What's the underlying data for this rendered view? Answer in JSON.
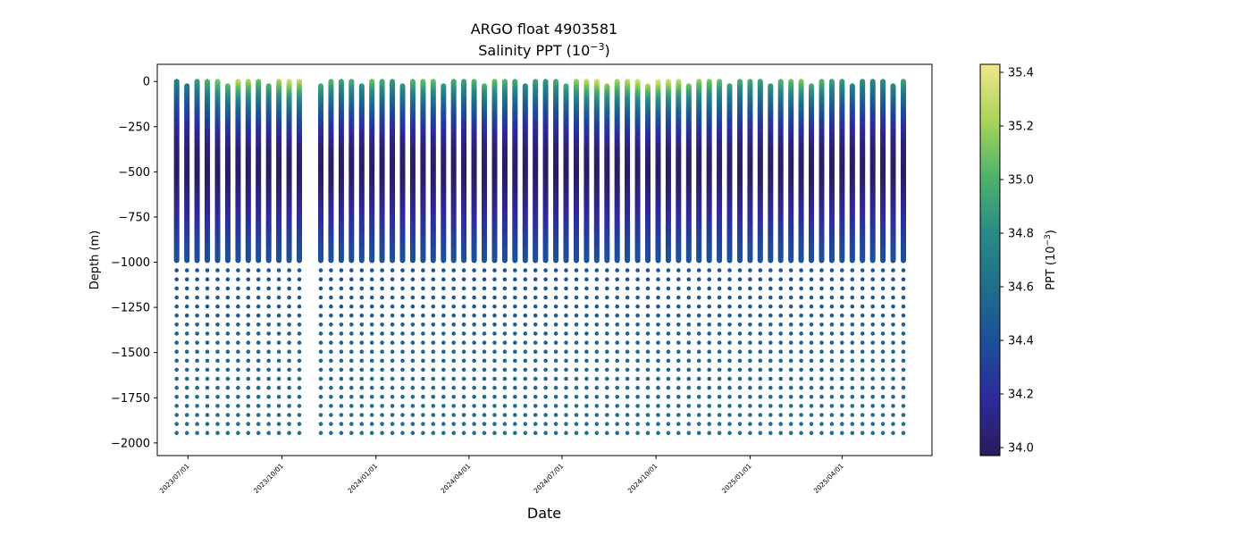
{
  "chart_data": {
    "type": "scatter",
    "title": "ARGO float 4903581",
    "subtitle": "Salinity PPT (10",
    "subtitle_exp": "−3",
    "subtitle_close": ")",
    "xlabel": "Date",
    "ylabel": "Depth (m)",
    "colorbar_label": "PPT (10",
    "colorbar_label_exp": "−3",
    "colorbar_label_close": ")",
    "colormap": [
      "#2a1b5c",
      "#2d2a9c",
      "#1c4e9a",
      "#1f6e8c",
      "#2a8b87",
      "#4fb36a",
      "#a8d45a",
      "#f3e68a"
    ],
    "color_range": [
      33.97,
      35.43
    ],
    "colorbar_ticks": [
      "34.0",
      "34.2",
      "34.4",
      "34.6",
      "34.8",
      "35.0",
      "35.2",
      "35.4"
    ],
    "ylim": [
      -2070,
      95
    ],
    "y_ticks": [
      "0",
      "−250",
      "−500",
      "−750",
      "−1000",
      "−1250",
      "−1500",
      "−1750",
      "−2000"
    ],
    "xlim": [
      "2023-06-01",
      "2025-06-28"
    ],
    "x_ticks": [
      "2023/07/01",
      "2023/10/01",
      "2024/01/01",
      "2024/04/01",
      "2024/07/01",
      "2024/10/01",
      "2025/01/01",
      "2025/04/01"
    ],
    "profiles_segment_1": {
      "first_date": "2023-06-20",
      "interval_days": 10,
      "count": 13
    },
    "profiles_segment_2": {
      "first_date": "2023-11-08",
      "interval_days": 10,
      "count": 58
    },
    "profile_depth_range": [
      -1975,
      0
    ],
    "surface_salinity": [
      34.75,
      34.8,
      34.9,
      35.05,
      35.15,
      35.2,
      35.3,
      35.25,
      35.1,
      35.15,
      35.25,
      35.35,
      35.3,
      35.1,
      35.05,
      34.95,
      35.0,
      34.95,
      35.1,
      35.0,
      34.9,
      35.0,
      35.05,
      35.1,
      35.1,
      35.0,
      35.0,
      34.95,
      35.05,
      35.15,
      35.1,
      35.05,
      35.0,
      34.9,
      34.95,
      34.9,
      35.0,
      35.1,
      35.2,
      35.3,
      35.35,
      35.3,
      35.25,
      35.3,
      35.35,
      35.4,
      35.4,
      35.35,
      35.3,
      35.25,
      35.2,
      35.15,
      35.1,
      35.05,
      35.0,
      35.0,
      34.95,
      35.0,
      35.05,
      35.1,
      35.15,
      35.1,
      35.05,
      34.95,
      34.9,
      34.85,
      34.85,
      34.8,
      34.85,
      34.9,
      34.95
    ],
    "salinity_minimum": {
      "value": 34.0,
      "depth": -520
    },
    "salinity_at_depth": {
      "-1000": 34.42,
      "-1500": 34.55,
      "-2000": 34.62
    }
  }
}
